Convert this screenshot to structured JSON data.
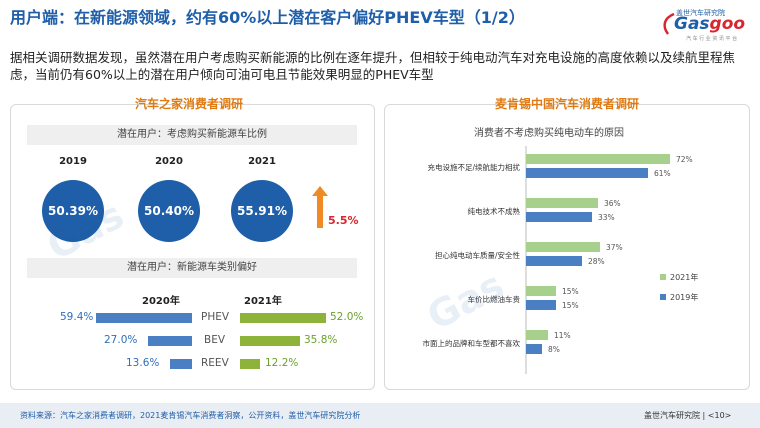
{
  "header": {
    "title": "用户端：在新能源领域，约有60%以上潜在客户偏好PHEV车型（1/2）",
    "logo": {
      "cn": "盖世汽车研究院",
      "en_a": "Gas",
      "en_b": "goo",
      "sub": "汽 车 行 业 资 讯 平 台"
    }
  },
  "intro": "据相关调研数据发现，虽然潜在用户考虑购买新能源的比例在逐年提升，但相较于纯电动汽车对充电设施的高度依赖以及续航里程焦虑，当前仍有60%以上的潜在用户倾向可油可电且节能效果明显的PHEV车型",
  "left": {
    "title": "汽车之家消费者调研",
    "band1": "潜在用户：考虑购买新能源车比例",
    "years": [
      "2019",
      "2020",
      "2021"
    ],
    "ratios": [
      "50.39%",
      "50.40%",
      "55.91%"
    ],
    "growth": "5.5%",
    "band2": "潜在用户：新能源车类别偏好",
    "col_2020": "2020年",
    "col_2021": "2021年",
    "prefs": [
      {
        "type": "PHEV",
        "v2020": "59.4%",
        "v2021": "52.0%"
      },
      {
        "type": "BEV",
        "v2020": "27.0%",
        "v2021": "35.8%"
      },
      {
        "type": "REEV",
        "v2020": "13.6%",
        "v2021": "12.2%"
      }
    ]
  },
  "right": {
    "title": "麦肯锡中国汽车消费者调研"
  },
  "chart_data": {
    "type": "bar",
    "orientation": "horizontal",
    "title": "消费者不考虑购买纯电动车的原因",
    "categories": [
      "充电设施不足/续航能力相扰",
      "纯电技术不成熟",
      "担心纯电动车质量/安全性",
      "车价比燃油车贵",
      "市面上的品牌和车型都不喜欢"
    ],
    "series": [
      {
        "name": "2021年",
        "values": [
          72,
          36,
          37,
          15,
          11
        ],
        "labels": [
          "72%",
          "36%",
          "37%",
          "15%",
          "11%"
        ],
        "color": "#a8d08d"
      },
      {
        "name": "2019年",
        "values": [
          61,
          33,
          28,
          15,
          8
        ],
        "labels": [
          "61%",
          "33%",
          "28%",
          "15%",
          "8%"
        ],
        "color": "#4a7fc4"
      }
    ],
    "xlim": [
      0,
      100
    ],
    "legend": "right"
  },
  "footer": {
    "source": "资料来源：汽车之家消费者调研，2021麦肯锡汽车消费者洞察，公开资料，盖世汽车研究院分析",
    "org": "盖世汽车研究院",
    "page": "<10>"
  },
  "colors": {
    "brand_blue": "#1f5ea8",
    "orange": "#e07b12",
    "red": "#d8262e",
    "green": "#8db33a",
    "bar_blue": "#4a7fc4"
  }
}
